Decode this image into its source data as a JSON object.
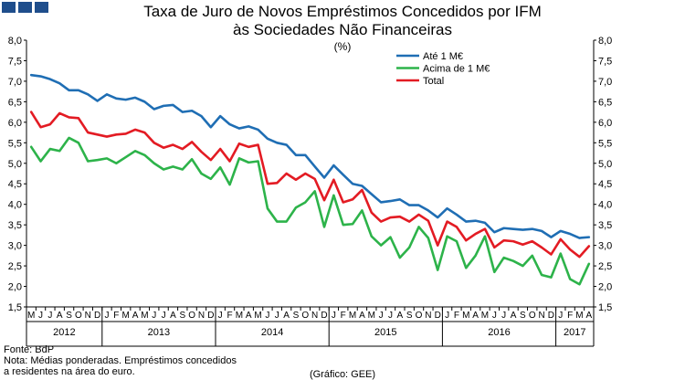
{
  "header": {
    "title_line1": "Taxa de Juro de Novos Empréstimos Concedidos por IFM",
    "title_line2": "às Sociedades Não Financeiras",
    "unit": "(%)"
  },
  "footer": {
    "source": "Fonte: BdP",
    "note_line1": "Nota: Médias ponderadas. Empréstimos concedidos",
    "note_line2": "a residentes na área do euro.",
    "credit": "(Gráfico: GEE)"
  },
  "colors": {
    "series1": "#1f6eb4",
    "series2": "#2db34a",
    "series3": "#e31b23",
    "squares": "#1f4e8c"
  },
  "chart_data": {
    "type": "line",
    "title": "Taxa de Juro de Novos Empréstimos Concedidos por IFM às Sociedades Não Financeiras",
    "ylabel": "(%)",
    "ylim": [
      1.5,
      8.0
    ],
    "yticks": [
      "1,5",
      "2,0",
      "2,5",
      "3,0",
      "3,5",
      "4,0",
      "4,5",
      "5,0",
      "5,5",
      "6,0",
      "6,5",
      "7,0",
      "7,5",
      "8,0"
    ],
    "months": [
      "M",
      "J",
      "J",
      "A",
      "S",
      "O",
      "N",
      "D",
      "J",
      "F",
      "M",
      "A",
      "M",
      "J",
      "J",
      "A",
      "S",
      "O",
      "N",
      "D",
      "J",
      "F",
      "M",
      "A",
      "M",
      "J",
      "J",
      "A",
      "S",
      "O",
      "N",
      "D",
      "J",
      "F",
      "M",
      "A",
      "M",
      "J",
      "J",
      "A",
      "S",
      "O",
      "N",
      "D",
      "J",
      "F",
      "M",
      "A",
      "M",
      "J",
      "J",
      "A",
      "S",
      "O",
      "N",
      "D",
      "J",
      "F",
      "M",
      "A"
    ],
    "years": [
      {
        "label": "2012",
        "start": 0,
        "end": 7
      },
      {
        "label": "2013",
        "start": 8,
        "end": 19
      },
      {
        "label": "2014",
        "start": 20,
        "end": 31
      },
      {
        "label": "2015",
        "start": 32,
        "end": 43
      },
      {
        "label": "2016",
        "start": 44,
        "end": 55
      },
      {
        "label": "2017",
        "start": 56,
        "end": 59
      }
    ],
    "legend_position": "top-right",
    "series": [
      {
        "name": "Até 1 M€",
        "color": "#1f6eb4",
        "values": [
          7.15,
          7.12,
          7.05,
          6.95,
          6.78,
          6.78,
          6.68,
          6.52,
          6.68,
          6.58,
          6.55,
          6.6,
          6.5,
          6.32,
          6.4,
          6.42,
          6.25,
          6.28,
          6.15,
          5.88,
          6.15,
          5.95,
          5.85,
          5.9,
          5.82,
          5.6,
          5.5,
          5.45,
          5.2,
          5.2,
          4.92,
          4.65,
          4.95,
          4.72,
          4.5,
          4.45,
          4.25,
          4.05,
          4.08,
          4.12,
          3.98,
          3.98,
          3.85,
          3.68,
          3.9,
          3.75,
          3.58,
          3.6,
          3.55,
          3.32,
          3.42,
          3.4,
          3.38,
          3.4,
          3.35,
          3.2,
          3.35,
          3.28,
          3.18,
          3.2
        ]
      },
      {
        "name": "Acima de 1 M€",
        "color": "#2db34a",
        "values": [
          5.4,
          5.05,
          5.35,
          5.3,
          5.62,
          5.5,
          5.05,
          5.08,
          5.12,
          5.0,
          5.15,
          5.3,
          5.2,
          5.0,
          4.85,
          4.92,
          4.85,
          5.1,
          4.75,
          4.62,
          4.9,
          4.48,
          5.12,
          5.02,
          5.05,
          3.9,
          3.58,
          3.58,
          3.92,
          4.05,
          4.32,
          3.45,
          4.22,
          3.5,
          3.52,
          3.85,
          3.22,
          3.0,
          3.2,
          2.7,
          2.95,
          3.45,
          3.18,
          2.4,
          3.22,
          3.1,
          2.45,
          2.75,
          3.22,
          2.35,
          2.7,
          2.62,
          2.5,
          2.75,
          2.28,
          2.22,
          2.8,
          2.18,
          2.05,
          2.55
        ]
      },
      {
        "name": "Total",
        "color": "#e31b23",
        "values": [
          6.25,
          5.88,
          5.95,
          6.22,
          6.12,
          6.1,
          5.75,
          5.7,
          5.65,
          5.7,
          5.72,
          5.82,
          5.75,
          5.5,
          5.38,
          5.45,
          5.35,
          5.52,
          5.28,
          5.08,
          5.35,
          5.05,
          5.48,
          5.4,
          5.45,
          4.5,
          4.52,
          4.75,
          4.6,
          4.75,
          4.62,
          4.1,
          4.6,
          4.05,
          4.12,
          4.35,
          3.8,
          3.58,
          3.68,
          3.7,
          3.58,
          3.75,
          3.6,
          3.0,
          3.58,
          3.45,
          3.12,
          3.28,
          3.4,
          2.95,
          3.12,
          3.1,
          3.02,
          3.1,
          2.95,
          2.78,
          3.15,
          2.9,
          2.72,
          2.98
        ]
      }
    ]
  }
}
